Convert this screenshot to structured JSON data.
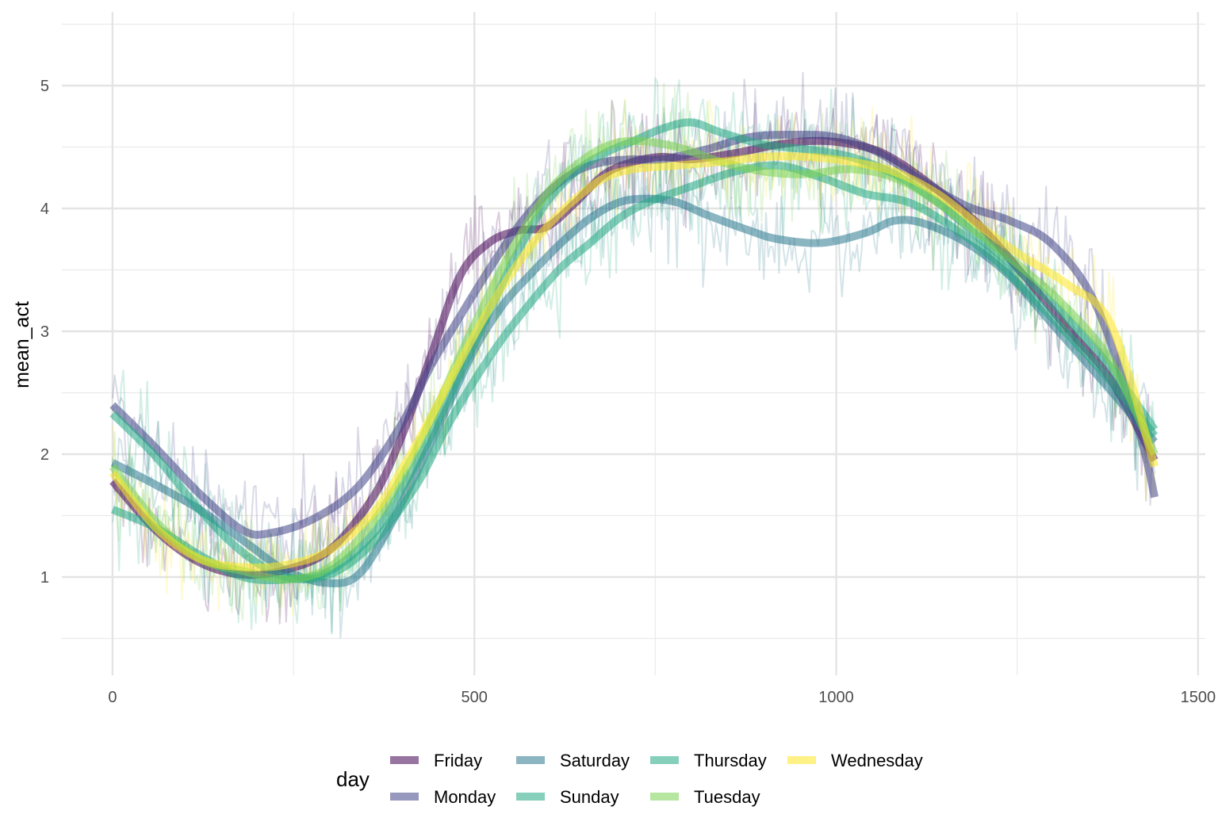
{
  "chart_data": {
    "type": "line",
    "title": "",
    "xlabel": "",
    "ylabel": "mean_act",
    "xlim": [
      -70,
      1510
    ],
    "ylim": [
      0.2,
      5.6
    ],
    "xticks": [
      0,
      500,
      1000,
      1500
    ],
    "xtick_labels": [
      "0",
      "500",
      "1000",
      "1500"
    ],
    "yticks": [
      1,
      2,
      3,
      4,
      5
    ],
    "ytick_labels": [
      "1",
      "2",
      "3",
      "4",
      "5"
    ],
    "grid": true,
    "legend": {
      "title": "day",
      "position": "bottom"
    },
    "raw_noise_amplitude": 0.28,
    "series": [
      {
        "name": "Friday",
        "color": "#440154",
        "smooth": [
          [
            0,
            1.78
          ],
          [
            60,
            1.38
          ],
          [
            120,
            1.12
          ],
          [
            180,
            1.02
          ],
          [
            240,
            1.06
          ],
          [
            300,
            1.22
          ],
          [
            360,
            1.65
          ],
          [
            400,
            2.15
          ],
          [
            440,
            2.8
          ],
          [
            480,
            3.45
          ],
          [
            520,
            3.72
          ],
          [
            560,
            3.82
          ],
          [
            600,
            3.85
          ],
          [
            640,
            4.05
          ],
          [
            680,
            4.28
          ],
          [
            720,
            4.38
          ],
          [
            760,
            4.42
          ],
          [
            800,
            4.4
          ],
          [
            860,
            4.45
          ],
          [
            920,
            4.52
          ],
          [
            980,
            4.55
          ],
          [
            1040,
            4.5
          ],
          [
            1080,
            4.4
          ],
          [
            1140,
            4.15
          ],
          [
            1200,
            3.85
          ],
          [
            1260,
            3.45
          ],
          [
            1320,
            3.02
          ],
          [
            1380,
            2.6
          ],
          [
            1440,
            1.95
          ]
        ]
      },
      {
        "name": "Monday",
        "color": "#414487",
        "smooth": [
          [
            0,
            2.4
          ],
          [
            60,
            2.05
          ],
          [
            120,
            1.68
          ],
          [
            180,
            1.38
          ],
          [
            220,
            1.36
          ],
          [
            280,
            1.48
          ],
          [
            340,
            1.74
          ],
          [
            400,
            2.25
          ],
          [
            440,
            2.72
          ],
          [
            480,
            3.12
          ],
          [
            520,
            3.5
          ],
          [
            560,
            3.85
          ],
          [
            600,
            4.12
          ],
          [
            640,
            4.3
          ],
          [
            680,
            4.38
          ],
          [
            720,
            4.4
          ],
          [
            760,
            4.4
          ],
          [
            820,
            4.48
          ],
          [
            880,
            4.58
          ],
          [
            940,
            4.6
          ],
          [
            1000,
            4.58
          ],
          [
            1060,
            4.45
          ],
          [
            1120,
            4.22
          ],
          [
            1180,
            4.02
          ],
          [
            1240,
            3.9
          ],
          [
            1300,
            3.7
          ],
          [
            1360,
            3.2
          ],
          [
            1420,
            2.15
          ],
          [
            1440,
            1.65
          ]
        ]
      },
      {
        "name": "Saturday",
        "color": "#2a788e",
        "smooth": [
          [
            0,
            1.93
          ],
          [
            60,
            1.75
          ],
          [
            120,
            1.55
          ],
          [
            180,
            1.3
          ],
          [
            240,
            1.05
          ],
          [
            300,
            0.95
          ],
          [
            340,
            1.02
          ],
          [
            380,
            1.38
          ],
          [
            420,
            1.85
          ],
          [
            460,
            2.35
          ],
          [
            500,
            2.85
          ],
          [
            540,
            3.22
          ],
          [
            580,
            3.48
          ],
          [
            620,
            3.72
          ],
          [
            660,
            3.92
          ],
          [
            700,
            4.05
          ],
          [
            740,
            4.08
          ],
          [
            780,
            4.05
          ],
          [
            820,
            3.95
          ],
          [
            880,
            3.82
          ],
          [
            920,
            3.75
          ],
          [
            980,
            3.72
          ],
          [
            1040,
            3.8
          ],
          [
            1080,
            3.9
          ],
          [
            1120,
            3.88
          ],
          [
            1180,
            3.72
          ],
          [
            1240,
            3.45
          ],
          [
            1300,
            3.05
          ],
          [
            1360,
            2.65
          ],
          [
            1440,
            2.1
          ]
        ]
      },
      {
        "name": "Sunday",
        "color": "#22a884",
        "smooth": [
          [
            0,
            2.33
          ],
          [
            60,
            1.98
          ],
          [
            120,
            1.55
          ],
          [
            180,
            1.2
          ],
          [
            240,
            1.0
          ],
          [
            300,
            1.02
          ],
          [
            360,
            1.28
          ],
          [
            420,
            1.75
          ],
          [
            460,
            2.2
          ],
          [
            500,
            2.6
          ],
          [
            540,
            2.95
          ],
          [
            580,
            3.25
          ],
          [
            620,
            3.52
          ],
          [
            660,
            3.72
          ],
          [
            700,
            3.92
          ],
          [
            740,
            4.05
          ],
          [
            800,
            4.18
          ],
          [
            860,
            4.3
          ],
          [
            920,
            4.35
          ],
          [
            980,
            4.25
          ],
          [
            1040,
            4.12
          ],
          [
            1100,
            4.05
          ],
          [
            1160,
            3.85
          ],
          [
            1220,
            3.58
          ],
          [
            1280,
            3.22
          ],
          [
            1340,
            2.85
          ],
          [
            1400,
            2.45
          ],
          [
            1440,
            2.15
          ]
        ]
      },
      {
        "name": "Thursday",
        "color": "#22a884",
        "smooth": [
          [
            0,
            1.55
          ],
          [
            60,
            1.4
          ],
          [
            120,
            1.18
          ],
          [
            180,
            1.0
          ],
          [
            240,
            0.98
          ],
          [
            300,
            1.05
          ],
          [
            360,
            1.35
          ],
          [
            400,
            1.72
          ],
          [
            440,
            2.15
          ],
          [
            480,
            2.65
          ],
          [
            520,
            3.15
          ],
          [
            560,
            3.65
          ],
          [
            600,
            4.05
          ],
          [
            640,
            4.3
          ],
          [
            680,
            4.45
          ],
          [
            720,
            4.55
          ],
          [
            760,
            4.65
          ],
          [
            800,
            4.7
          ],
          [
            840,
            4.62
          ],
          [
            900,
            4.52
          ],
          [
            960,
            4.48
          ],
          [
            1020,
            4.42
          ],
          [
            1080,
            4.28
          ],
          [
            1140,
            4.05
          ],
          [
            1200,
            3.75
          ],
          [
            1260,
            3.45
          ],
          [
            1320,
            3.1
          ],
          [
            1380,
            2.7
          ],
          [
            1440,
            2.2
          ]
        ]
      },
      {
        "name": "Tuesday",
        "color": "#7ad151",
        "smooth": [
          [
            0,
            1.9
          ],
          [
            60,
            1.45
          ],
          [
            120,
            1.15
          ],
          [
            180,
            1.05
          ],
          [
            240,
            0.98
          ],
          [
            300,
            1.08
          ],
          [
            360,
            1.45
          ],
          [
            400,
            1.82
          ],
          [
            440,
            2.28
          ],
          [
            480,
            2.8
          ],
          [
            520,
            3.3
          ],
          [
            560,
            3.75
          ],
          [
            600,
            4.12
          ],
          [
            640,
            4.35
          ],
          [
            680,
            4.5
          ],
          [
            720,
            4.55
          ],
          [
            780,
            4.5
          ],
          [
            840,
            4.38
          ],
          [
            900,
            4.3
          ],
          [
            960,
            4.28
          ],
          [
            1020,
            4.32
          ],
          [
            1080,
            4.25
          ],
          [
            1140,
            4.05
          ],
          [
            1200,
            3.78
          ],
          [
            1260,
            3.5
          ],
          [
            1320,
            3.18
          ],
          [
            1380,
            2.75
          ],
          [
            1440,
            2.0
          ]
        ]
      },
      {
        "name": "Wednesday",
        "color": "#fde725",
        "smooth": [
          [
            0,
            1.85
          ],
          [
            60,
            1.4
          ],
          [
            120,
            1.15
          ],
          [
            180,
            1.08
          ],
          [
            240,
            1.1
          ],
          [
            300,
            1.22
          ],
          [
            360,
            1.52
          ],
          [
            400,
            1.88
          ],
          [
            440,
            2.3
          ],
          [
            480,
            2.75
          ],
          [
            520,
            3.18
          ],
          [
            560,
            3.55
          ],
          [
            600,
            3.85
          ],
          [
            640,
            4.08
          ],
          [
            680,
            4.25
          ],
          [
            720,
            4.32
          ],
          [
            780,
            4.35
          ],
          [
            840,
            4.38
          ],
          [
            900,
            4.42
          ],
          [
            960,
            4.42
          ],
          [
            1020,
            4.38
          ],
          [
            1080,
            4.3
          ],
          [
            1140,
            4.12
          ],
          [
            1200,
            3.85
          ],
          [
            1260,
            3.6
          ],
          [
            1320,
            3.38
          ],
          [
            1380,
            3.05
          ],
          [
            1440,
            1.9
          ]
        ]
      }
    ]
  }
}
